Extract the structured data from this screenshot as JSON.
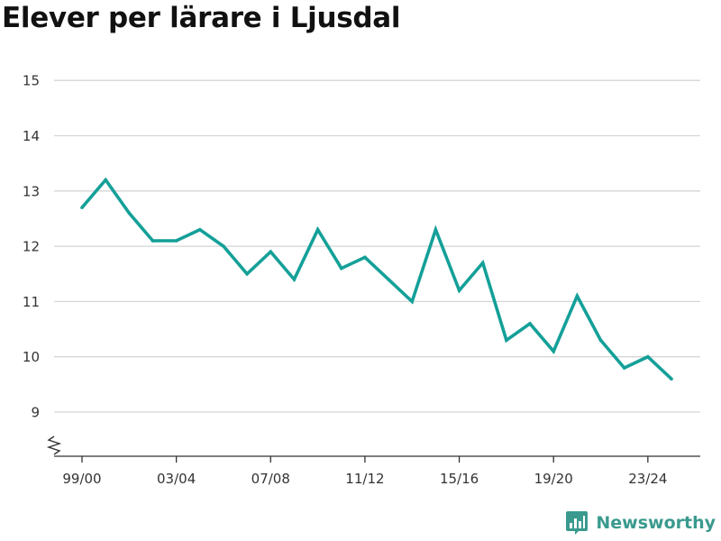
{
  "page": {
    "title": "Elever per lärare i Ljusdal"
  },
  "brand": {
    "name": "Newsworthy",
    "color": "#3a9a8e"
  },
  "chart_data": {
    "type": "line",
    "title": "Elever per lärare i Ljusdal",
    "xlabel": "",
    "ylabel": "",
    "ylim": [
      8.5,
      15
    ],
    "y_axis_break": true,
    "yticks": [
      9,
      10,
      11,
      12,
      13,
      14,
      15
    ],
    "grid": "horizontal",
    "line_color": "#14a098",
    "x_tick_labels": [
      "99/00",
      "03/04",
      "07/08",
      "11/12",
      "15/16",
      "19/20",
      "23/24"
    ],
    "x": [
      "99/00",
      "00/01",
      "01/02",
      "02/03",
      "03/04",
      "04/05",
      "05/06",
      "06/07",
      "07/08",
      "08/09",
      "09/10",
      "10/11",
      "11/12",
      "12/13",
      "13/14",
      "14/15",
      "15/16",
      "16/17",
      "17/18",
      "18/19",
      "19/20",
      "20/21",
      "21/22",
      "22/23",
      "23/24",
      "24/25"
    ],
    "series": [
      {
        "values": [
          12.7,
          13.2,
          12.6,
          12.1,
          12.1,
          12.3,
          12.0,
          11.5,
          11.9,
          11.4,
          12.3,
          11.6,
          11.8,
          11.4,
          11.0,
          12.3,
          11.2,
          11.7,
          10.3,
          10.6,
          10.1,
          11.1,
          10.3,
          9.8,
          10.0,
          9.6
        ]
      }
    ]
  }
}
